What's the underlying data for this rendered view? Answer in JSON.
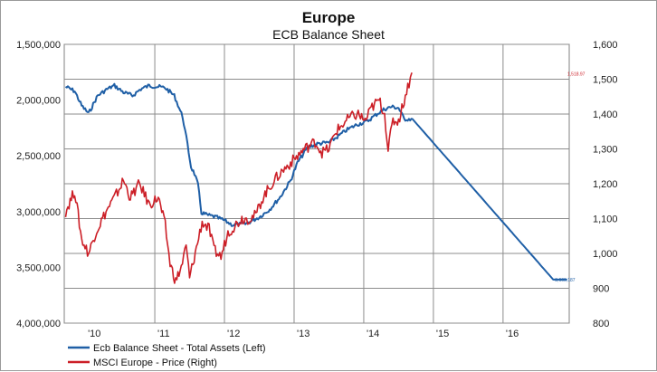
{
  "chart_data": {
    "type": "line",
    "title": "Europe",
    "subtitle": "ECB Balance Sheet",
    "x_tick_labels": [
      "'10",
      "'11",
      "'12",
      "'13",
      "'14",
      "'15",
      "'16"
    ],
    "x_range": [
      2009.7,
      2016.95
    ],
    "left_axis": {
      "reversed": true,
      "ylim": [
        1500000,
        4000000
      ],
      "tick_labels": [
        "1,500,000",
        "2,000,000",
        "2,500,000",
        "3,000,000",
        "3,500,000",
        "4,000,000"
      ],
      "tick_values": [
        1500000,
        2000000,
        2500000,
        3000000,
        3500000,
        4000000
      ]
    },
    "right_axis": {
      "ylim": [
        800,
        1600
      ],
      "tick_labels": [
        "1,600",
        "1,500",
        "1,400",
        "1,300",
        "1,200",
        "1,100",
        "1,000",
        "900",
        "800"
      ],
      "tick_values": [
        1600,
        1500,
        1400,
        1300,
        1200,
        1100,
        1000,
        900,
        800
      ]
    },
    "grid": true,
    "legend_position": "bottom-left",
    "series": [
      {
        "name": "Ecb Balance Sheet - Total Assets (Left)",
        "axis": "left",
        "color": "#1f5fa6",
        "end_label": "3,609,187",
        "points": [
          [
            2009.72,
            1880000
          ],
          [
            2009.85,
            1920000
          ],
          [
            2009.95,
            2050000
          ],
          [
            2010.05,
            2120000
          ],
          [
            2010.18,
            1960000
          ],
          [
            2010.32,
            1900000
          ],
          [
            2010.42,
            1870000
          ],
          [
            2010.55,
            1930000
          ],
          [
            2010.68,
            1960000
          ],
          [
            2010.8,
            1900000
          ],
          [
            2010.92,
            1870000
          ],
          [
            2011.05,
            1880000
          ],
          [
            2011.15,
            1890000
          ],
          [
            2011.28,
            1960000
          ],
          [
            2011.4,
            2150000
          ],
          [
            2011.47,
            2400000
          ],
          [
            2011.52,
            2600000
          ],
          [
            2011.57,
            2660000
          ],
          [
            2011.62,
            2760000
          ],
          [
            2011.67,
            3010000
          ],
          [
            2011.75,
            3030000
          ],
          [
            2011.88,
            3050000
          ],
          [
            2012.0,
            3080000
          ],
          [
            2012.12,
            3120000
          ],
          [
            2012.3,
            3110000
          ],
          [
            2012.5,
            3050000
          ],
          [
            2012.65,
            2980000
          ],
          [
            2012.8,
            2870000
          ],
          [
            2012.95,
            2720000
          ],
          [
            2013.05,
            2560000
          ],
          [
            2013.2,
            2420000
          ],
          [
            2013.35,
            2390000
          ],
          [
            2013.5,
            2380000
          ],
          [
            2013.62,
            2330000
          ],
          [
            2013.75,
            2270000
          ],
          [
            2013.9,
            2220000
          ],
          [
            2014.05,
            2190000
          ],
          [
            2014.2,
            2120000
          ],
          [
            2014.3,
            2080000
          ],
          [
            2014.4,
            2060000
          ],
          [
            2014.5,
            2070000
          ],
          [
            2014.58,
            2170000
          ],
          [
            2014.7,
            2170000
          ],
          [
            2016.72,
            3609187
          ],
          [
            2016.92,
            3609187
          ]
        ],
        "noise": 18000
      },
      {
        "name": "MSCI Europe - Price (Right)",
        "axis": "right",
        "color": "#cc1f27",
        "end_label": "1,518.97",
        "points": [
          [
            2009.72,
            1120
          ],
          [
            2009.85,
            1180
          ],
          [
            2009.95,
            1040
          ],
          [
            2010.05,
            1000
          ],
          [
            2010.15,
            1060
          ],
          [
            2010.3,
            1120
          ],
          [
            2010.45,
            1170
          ],
          [
            2010.55,
            1210
          ],
          [
            2010.65,
            1160
          ],
          [
            2010.78,
            1200
          ],
          [
            2010.92,
            1140
          ],
          [
            2011.05,
            1160
          ],
          [
            2011.15,
            1080
          ],
          [
            2011.22,
            970
          ],
          [
            2011.3,
            920
          ],
          [
            2011.38,
            960
          ],
          [
            2011.45,
            1020
          ],
          [
            2011.5,
            930
          ],
          [
            2011.58,
            1000
          ],
          [
            2011.68,
            1090
          ],
          [
            2011.78,
            1070
          ],
          [
            2011.85,
            1010
          ],
          [
            2011.95,
            990
          ],
          [
            2012.05,
            1060
          ],
          [
            2012.15,
            1080
          ],
          [
            2012.25,
            1100
          ],
          [
            2012.35,
            1100
          ],
          [
            2012.45,
            1110
          ],
          [
            2012.55,
            1160
          ],
          [
            2012.68,
            1200
          ],
          [
            2012.8,
            1230
          ],
          [
            2012.95,
            1260
          ],
          [
            2013.05,
            1280
          ],
          [
            2013.15,
            1300
          ],
          [
            2013.3,
            1320
          ],
          [
            2013.4,
            1290
          ],
          [
            2013.5,
            1300
          ],
          [
            2013.6,
            1350
          ],
          [
            2013.7,
            1370
          ],
          [
            2013.8,
            1390
          ],
          [
            2013.92,
            1400
          ],
          [
            2014.02,
            1380
          ],
          [
            2014.12,
            1420
          ],
          [
            2014.22,
            1440
          ],
          [
            2014.3,
            1400
          ],
          [
            2014.35,
            1300
          ],
          [
            2014.42,
            1380
          ],
          [
            2014.5,
            1380
          ],
          [
            2014.58,
            1440
          ],
          [
            2014.65,
            1490
          ],
          [
            2014.69,
            1519
          ]
        ],
        "noise": 16
      }
    ]
  }
}
